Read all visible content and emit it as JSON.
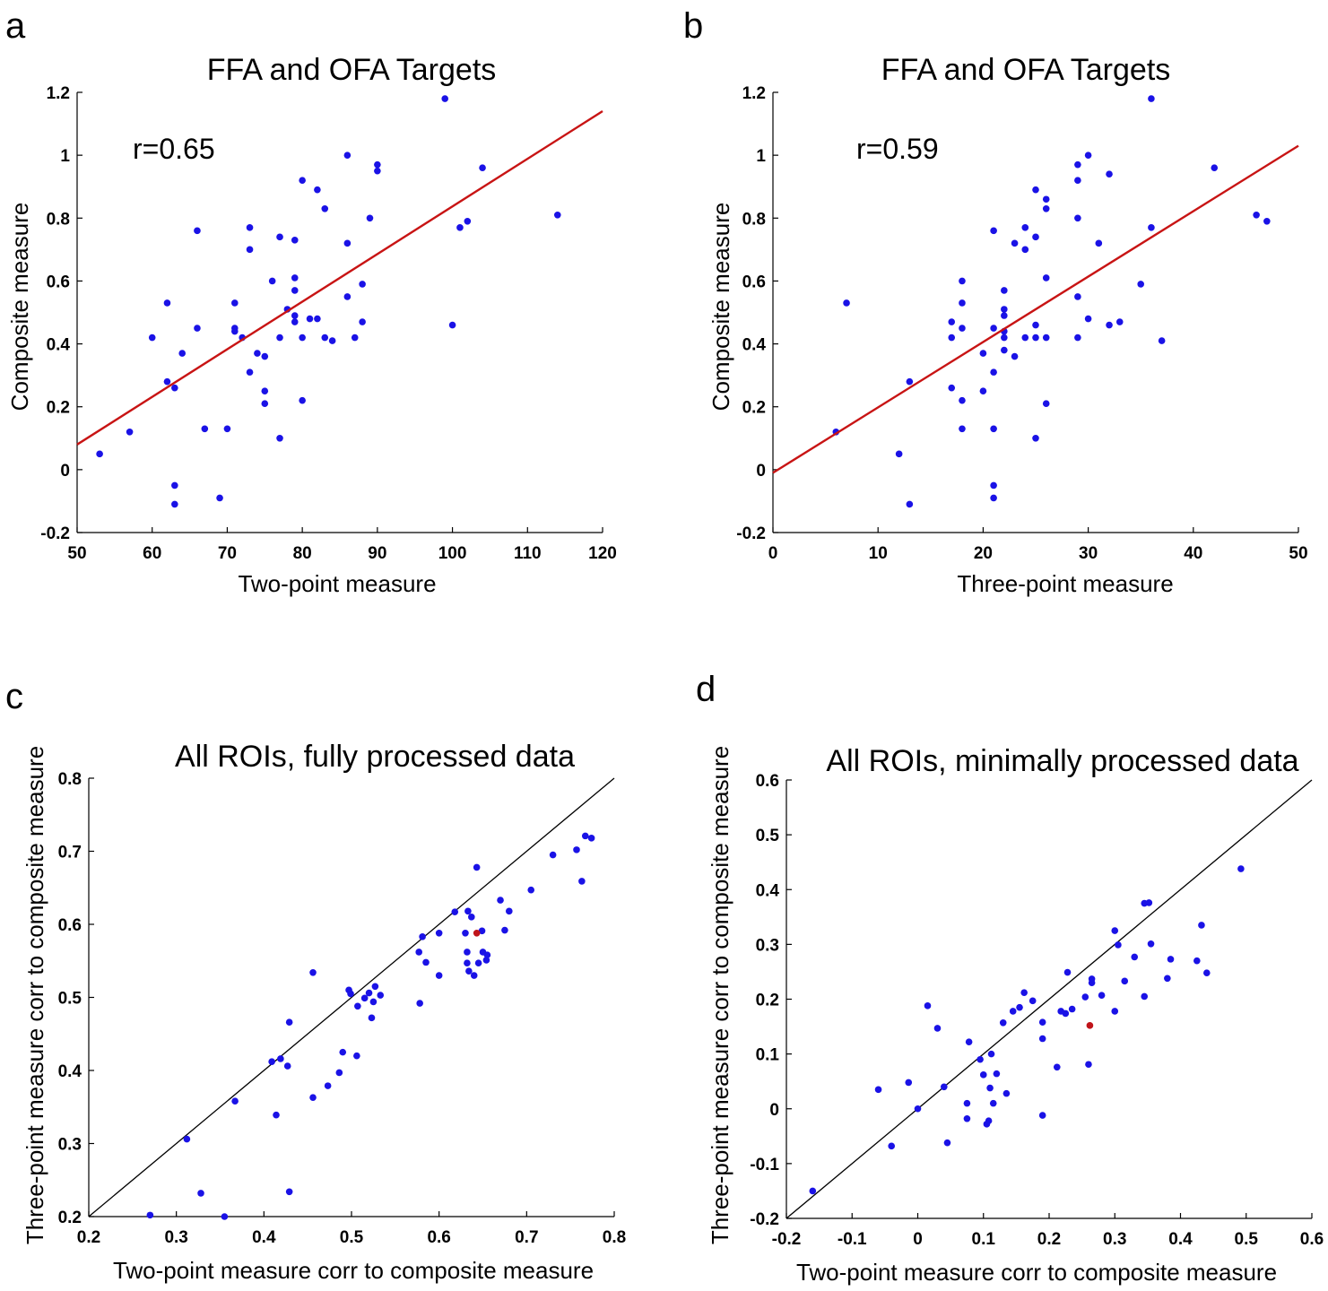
{
  "colors": {
    "point": "#1a12e6",
    "highlight": "#c0141a",
    "fit_line": "#c81414",
    "identity_line": "#000000"
  },
  "chart_data": [
    {
      "panel": "a",
      "type": "scatter",
      "title": "FFA and OFA Targets",
      "xlabel": "Two-point measure",
      "ylabel": "Composite measure",
      "xlim": [
        50,
        120
      ],
      "ylim": [
        -0.2,
        1.2
      ],
      "xticks": [
        50,
        60,
        70,
        80,
        90,
        100,
        110,
        120
      ],
      "yticks": [
        -0.2,
        0,
        0.2,
        0.4,
        0.6,
        0.8,
        1,
        1.2
      ],
      "annotation": "r=0.65",
      "fit_line": [
        [
          50,
          0.08
        ],
        [
          120,
          1.14
        ]
      ],
      "points": [
        [
          53,
          0.05
        ],
        [
          57,
          0.12
        ],
        [
          60,
          0.42
        ],
        [
          62,
          0.53
        ],
        [
          62,
          0.28
        ],
        [
          63,
          0.26
        ],
        [
          63,
          -0.05
        ],
        [
          63,
          -0.11
        ],
        [
          64,
          0.37
        ],
        [
          66,
          0.76
        ],
        [
          66,
          0.45
        ],
        [
          67,
          0.13
        ],
        [
          69,
          -0.09
        ],
        [
          70,
          0.13
        ],
        [
          71,
          0.53
        ],
        [
          71,
          0.45
        ],
        [
          71,
          0.44
        ],
        [
          72,
          0.42
        ],
        [
          73,
          0.77
        ],
        [
          73,
          0.7
        ],
        [
          73,
          0.31
        ],
        [
          74,
          0.37
        ],
        [
          75,
          0.36
        ],
        [
          75,
          0.25
        ],
        [
          75,
          0.21
        ],
        [
          76,
          0.6
        ],
        [
          77,
          0.74
        ],
        [
          77,
          0.42
        ],
        [
          77,
          0.1
        ],
        [
          78,
          0.51
        ],
        [
          79,
          0.73
        ],
        [
          79,
          0.61
        ],
        [
          79,
          0.57
        ],
        [
          79,
          0.49
        ],
        [
          79,
          0.47
        ],
        [
          80,
          0.92
        ],
        [
          80,
          0.42
        ],
        [
          80,
          0.22
        ],
        [
          81,
          0.48
        ],
        [
          82,
          0.89
        ],
        [
          82,
          0.48
        ],
        [
          83,
          0.83
        ],
        [
          83,
          0.42
        ],
        [
          84,
          0.41
        ],
        [
          86,
          1.0
        ],
        [
          86,
          0.72
        ],
        [
          86,
          0.55
        ],
        [
          87,
          0.42
        ],
        [
          88,
          0.59
        ],
        [
          88,
          0.47
        ],
        [
          89,
          0.8
        ],
        [
          90,
          0.97
        ],
        [
          90,
          0.95
        ],
        [
          99,
          1.18
        ],
        [
          100,
          0.46
        ],
        [
          101,
          0.77
        ],
        [
          102,
          0.79
        ],
        [
          104,
          0.96
        ],
        [
          114,
          0.81
        ]
      ]
    },
    {
      "panel": "b",
      "type": "scatter",
      "title": "FFA and OFA Targets",
      "xlabel": "Three-point measure",
      "ylabel": "Composite measure",
      "xlim": [
        0,
        50
      ],
      "ylim": [
        -0.2,
        1.2
      ],
      "xticks": [
        0,
        10,
        20,
        30,
        40,
        50
      ],
      "yticks": [
        -0.2,
        0,
        0.2,
        0.4,
        0.6,
        0.8,
        1,
        1.2
      ],
      "annotation": "r=0.59",
      "fit_line": [
        [
          0,
          -0.01
        ],
        [
          50,
          1.03
        ]
      ],
      "points": [
        [
          6,
          0.12
        ],
        [
          7,
          0.53
        ],
        [
          12,
          0.05
        ],
        [
          13,
          0.28
        ],
        [
          13,
          -0.11
        ],
        [
          17,
          0.47
        ],
        [
          17,
          0.42
        ],
        [
          17,
          0.26
        ],
        [
          18,
          0.6
        ],
        [
          18,
          0.53
        ],
        [
          18,
          0.45
        ],
        [
          18,
          0.22
        ],
        [
          18,
          0.13
        ],
        [
          20,
          0.37
        ],
        [
          20,
          0.25
        ],
        [
          21,
          0.76
        ],
        [
          21,
          0.45
        ],
        [
          21,
          0.31
        ],
        [
          21,
          0.13
        ],
        [
          21,
          -0.05
        ],
        [
          21,
          -0.09
        ],
        [
          22,
          0.57
        ],
        [
          22,
          0.51
        ],
        [
          22,
          0.49
        ],
        [
          22,
          0.44
        ],
        [
          22,
          0.42
        ],
        [
          22,
          0.38
        ],
        [
          23,
          0.72
        ],
        [
          23,
          0.36
        ],
        [
          24,
          0.77
        ],
        [
          24,
          0.7
        ],
        [
          24,
          0.42
        ],
        [
          25,
          0.89
        ],
        [
          25,
          0.74
        ],
        [
          25,
          0.46
        ],
        [
          25,
          0.42
        ],
        [
          25,
          0.1
        ],
        [
          26,
          0.86
        ],
        [
          26,
          0.83
        ],
        [
          26,
          0.61
        ],
        [
          26,
          0.42
        ],
        [
          26,
          0.21
        ],
        [
          29,
          0.97
        ],
        [
          29,
          0.92
        ],
        [
          29,
          0.8
        ],
        [
          29,
          0.55
        ],
        [
          29,
          0.42
        ],
        [
          30,
          1.0
        ],
        [
          30,
          0.48
        ],
        [
          31,
          0.72
        ],
        [
          32,
          0.94
        ],
        [
          32,
          0.46
        ],
        [
          33,
          0.47
        ],
        [
          35,
          0.59
        ],
        [
          36,
          1.18
        ],
        [
          36,
          0.77
        ],
        [
          37,
          0.41
        ],
        [
          42,
          0.96
        ],
        [
          46,
          0.81
        ],
        [
          47,
          0.79
        ]
      ]
    },
    {
      "panel": "c",
      "type": "scatter",
      "title": "All ROIs, fully processed data",
      "xlabel": "Two-point measure corr to composite measure",
      "ylabel": "Three-point measure corr to composite measure",
      "xlim": [
        0.2,
        0.8
      ],
      "ylim": [
        0.2,
        0.8
      ],
      "xticks": [
        0.2,
        0.3,
        0.4,
        0.5,
        0.6,
        0.7,
        0.8
      ],
      "yticks": [
        0.2,
        0.3,
        0.4,
        0.5,
        0.6,
        0.7,
        0.8
      ],
      "identity_line": true,
      "highlight_points": [
        [
          0.643,
          0.588
        ]
      ],
      "points": [
        [
          0.27,
          0.202
        ],
        [
          0.312,
          0.306
        ],
        [
          0.328,
          0.232
        ],
        [
          0.355,
          0.2
        ],
        [
          0.367,
          0.358
        ],
        [
          0.409,
          0.412
        ],
        [
          0.414,
          0.339
        ],
        [
          0.419,
          0.416
        ],
        [
          0.427,
          0.406
        ],
        [
          0.429,
          0.466
        ],
        [
          0.429,
          0.234
        ],
        [
          0.456,
          0.534
        ],
        [
          0.456,
          0.363
        ],
        [
          0.473,
          0.379
        ],
        [
          0.486,
          0.397
        ],
        [
          0.49,
          0.425
        ],
        [
          0.497,
          0.51
        ],
        [
          0.499,
          0.505
        ],
        [
          0.506,
          0.42
        ],
        [
          0.507,
          0.488
        ],
        [
          0.515,
          0.499
        ],
        [
          0.52,
          0.506
        ],
        [
          0.523,
          0.472
        ],
        [
          0.525,
          0.494
        ],
        [
          0.527,
          0.515
        ],
        [
          0.533,
          0.503
        ],
        [
          0.577,
          0.562
        ],
        [
          0.578,
          0.492
        ],
        [
          0.581,
          0.583
        ],
        [
          0.585,
          0.548
        ],
        [
          0.6,
          0.588
        ],
        [
          0.6,
          0.53
        ],
        [
          0.618,
          0.617
        ],
        [
          0.63,
          0.588
        ],
        [
          0.632,
          0.562
        ],
        [
          0.632,
          0.547
        ],
        [
          0.633,
          0.618
        ],
        [
          0.634,
          0.536
        ],
        [
          0.637,
          0.61
        ],
        [
          0.64,
          0.53
        ],
        [
          0.643,
          0.678
        ],
        [
          0.645,
          0.547
        ],
        [
          0.649,
          0.591
        ],
        [
          0.65,
          0.562
        ],
        [
          0.654,
          0.551
        ],
        [
          0.655,
          0.558
        ],
        [
          0.67,
          0.633
        ],
        [
          0.675,
          0.592
        ],
        [
          0.68,
          0.618
        ],
        [
          0.705,
          0.647
        ],
        [
          0.73,
          0.695
        ],
        [
          0.757,
          0.702
        ],
        [
          0.763,
          0.659
        ],
        [
          0.767,
          0.721
        ],
        [
          0.774,
          0.718
        ]
      ]
    },
    {
      "panel": "d",
      "type": "scatter",
      "title": "All ROIs, minimally processed data",
      "xlabel": "Two-point measure corr to composite measure",
      "ylabel": "Three-point measure corr to composite measure",
      "xlim": [
        -0.2,
        0.6
      ],
      "ylim": [
        -0.2,
        0.6
      ],
      "xticks": [
        -0.2,
        -0.1,
        0,
        0.1,
        0.2,
        0.3,
        0.4,
        0.5,
        0.6
      ],
      "yticks": [
        -0.2,
        -0.1,
        0,
        0.1,
        0.2,
        0.3,
        0.4,
        0.5,
        0.6
      ],
      "identity_line": true,
      "highlight_points": [
        [
          0.262,
          0.152
        ]
      ],
      "points": [
        [
          -0.16,
          -0.15
        ],
        [
          -0.06,
          0.035
        ],
        [
          -0.04,
          -0.068
        ],
        [
          -0.014,
          0.048
        ],
        [
          0.0,
          0.0
        ],
        [
          0.015,
          0.188
        ],
        [
          0.03,
          0.147
        ],
        [
          0.04,
          0.04
        ],
        [
          0.045,
          -0.062
        ],
        [
          0.075,
          0.01
        ],
        [
          0.075,
          -0.018
        ],
        [
          0.078,
          0.122
        ],
        [
          0.095,
          0.09
        ],
        [
          0.1,
          0.062
        ],
        [
          0.105,
          -0.028
        ],
        [
          0.108,
          -0.022
        ],
        [
          0.11,
          0.038
        ],
        [
          0.112,
          0.1
        ],
        [
          0.115,
          0.01
        ],
        [
          0.12,
          0.064
        ],
        [
          0.13,
          0.157
        ],
        [
          0.135,
          0.028
        ],
        [
          0.145,
          0.178
        ],
        [
          0.155,
          0.185
        ],
        [
          0.162,
          0.212
        ],
        [
          0.175,
          0.197
        ],
        [
          0.19,
          0.158
        ],
        [
          0.19,
          0.128
        ],
        [
          0.19,
          -0.012
        ],
        [
          0.212,
          0.076
        ],
        [
          0.218,
          0.178
        ],
        [
          0.225,
          0.174
        ],
        [
          0.228,
          0.249
        ],
        [
          0.235,
          0.182
        ],
        [
          0.255,
          0.204
        ],
        [
          0.26,
          0.081
        ],
        [
          0.265,
          0.23
        ],
        [
          0.265,
          0.237
        ],
        [
          0.28,
          0.207
        ],
        [
          0.3,
          0.178
        ],
        [
          0.3,
          0.325
        ],
        [
          0.305,
          0.299
        ],
        [
          0.315,
          0.233
        ],
        [
          0.33,
          0.277
        ],
        [
          0.345,
          0.205
        ],
        [
          0.345,
          0.375
        ],
        [
          0.352,
          0.376
        ],
        [
          0.355,
          0.301
        ],
        [
          0.38,
          0.238
        ],
        [
          0.385,
          0.273
        ],
        [
          0.425,
          0.27
        ],
        [
          0.432,
          0.335
        ],
        [
          0.44,
          0.248
        ],
        [
          0.492,
          0.438
        ]
      ]
    }
  ]
}
